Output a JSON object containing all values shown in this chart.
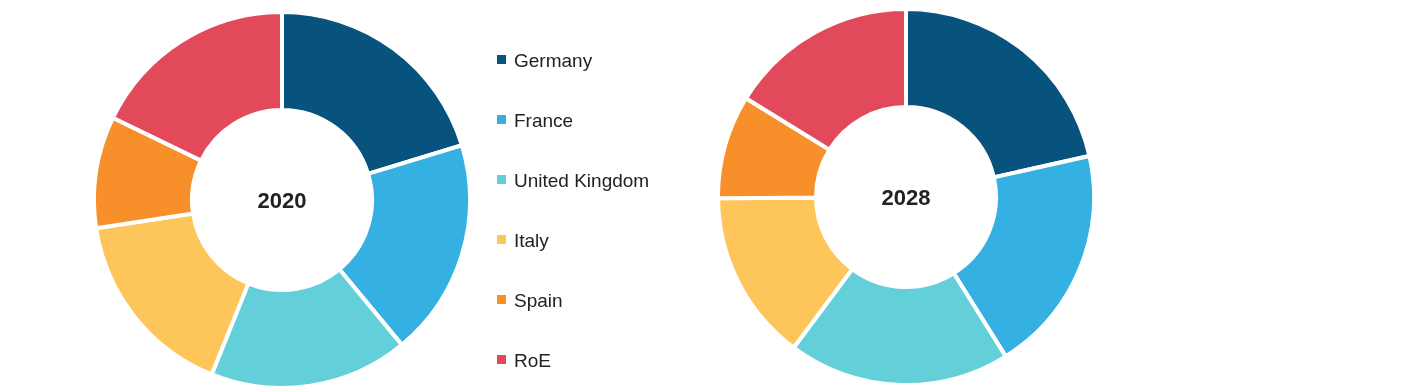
{
  "chart_data": {
    "type": "donut",
    "categories": [
      "Germany",
      "France",
      "United Kingdom",
      "Italy",
      "Spain",
      "RoE"
    ],
    "colors": [
      "#08527e",
      "#35b0e2",
      "#63cfd8",
      "#fdc55a",
      "#f7902a",
      "#e2495a"
    ],
    "legend": "right",
    "series": [
      {
        "name": "2020",
        "values": [
          20.3,
          18.7,
          17.1,
          16.5,
          9.6,
          17.8
        ]
      },
      {
        "name": "2028",
        "values": [
          21.5,
          19.6,
          19.1,
          14.7,
          8.9,
          16.2
        ]
      }
    ]
  }
}
